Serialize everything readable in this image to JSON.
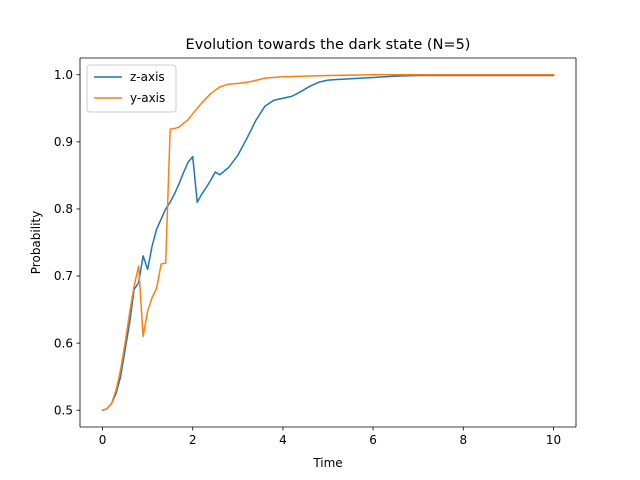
{
  "chart_data": {
    "type": "line",
    "title": "Evolution towards the dark state (N=5)",
    "xlabel": "Time",
    "ylabel": "Probability",
    "xlim": [
      -0.5,
      10.5
    ],
    "ylim": [
      0.475,
      1.025
    ],
    "xticks": [
      0,
      2,
      4,
      6,
      8,
      10
    ],
    "xtick_labels": [
      "0",
      "2",
      "4",
      "6",
      "8",
      "10"
    ],
    "yticks": [
      0.5,
      0.6,
      0.7,
      0.8,
      0.9,
      1.0
    ],
    "ytick_labels": [
      "0.5",
      "0.6",
      "0.7",
      "0.8",
      "0.9",
      "1.0"
    ],
    "grid": false,
    "legend_position": "upper-left",
    "series": [
      {
        "name": "z-axis",
        "color": "#1f77b4",
        "x": [
          0,
          0.1,
          0.2,
          0.3,
          0.4,
          0.5,
          0.6,
          0.7,
          0.8,
          0.9,
          1.0,
          1.1,
          1.2,
          1.3,
          1.4,
          1.5,
          1.6,
          1.7,
          1.8,
          1.9,
          2.0,
          2.1,
          2.2,
          2.3,
          2.4,
          2.5,
          2.6,
          2.8,
          3.0,
          3.2,
          3.4,
          3.6,
          3.8,
          4.0,
          4.2,
          4.4,
          4.6,
          4.8,
          5.0,
          5.2,
          5.5,
          6.0,
          6.5,
          7.0,
          8.0,
          9.0,
          10.0
        ],
        "y": [
          0.5,
          0.502,
          0.51,
          0.525,
          0.55,
          0.59,
          0.63,
          0.68,
          0.69,
          0.73,
          0.71,
          0.745,
          0.77,
          0.785,
          0.8,
          0.81,
          0.823,
          0.838,
          0.855,
          0.87,
          0.878,
          0.81,
          0.822,
          0.832,
          0.843,
          0.855,
          0.851,
          0.862,
          0.88,
          0.905,
          0.932,
          0.953,
          0.962,
          0.965,
          0.968,
          0.975,
          0.983,
          0.989,
          0.992,
          0.993,
          0.994,
          0.996,
          0.998,
          0.999,
          0.999,
          0.999,
          0.999
        ]
      },
      {
        "name": "y-axis",
        "color": "#ff7f0e",
        "x": [
          0,
          0.1,
          0.2,
          0.3,
          0.4,
          0.5,
          0.6,
          0.7,
          0.8,
          0.9,
          1.0,
          1.1,
          1.2,
          1.3,
          1.4,
          1.45,
          1.5,
          1.6,
          1.7,
          1.8,
          1.9,
          2.0,
          2.2,
          2.4,
          2.6,
          2.8,
          3.0,
          3.3,
          3.6,
          4.0,
          4.5,
          5.0,
          6.0,
          7.0,
          8.0,
          9.0,
          10.0
        ],
        "y": [
          0.5,
          0.502,
          0.51,
          0.53,
          0.56,
          0.6,
          0.645,
          0.685,
          0.715,
          0.61,
          0.648,
          0.668,
          0.682,
          0.718,
          0.719,
          0.82,
          0.919,
          0.92,
          0.922,
          0.928,
          0.933,
          0.942,
          0.958,
          0.972,
          0.982,
          0.986,
          0.987,
          0.99,
          0.995,
          0.997,
          0.998,
          0.999,
          1.0,
          1.0,
          1.0,
          1.0,
          1.0
        ]
      }
    ]
  }
}
